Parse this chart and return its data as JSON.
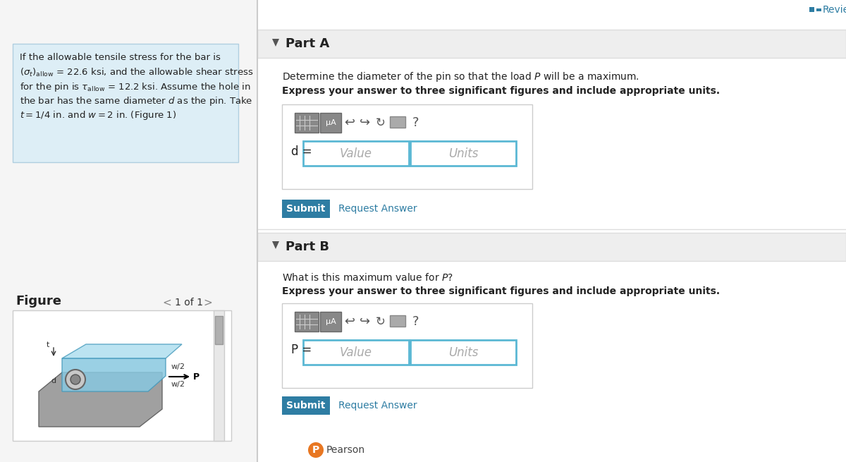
{
  "bg_color": "#f0f0f0",
  "white": "#ffffff",
  "light_blue_box": "#ddeef6",
  "submit_color": "#2e7da3",
  "input_border": "#5bb8d4",
  "dark_text": "#222222",
  "review_color": "#2e7da3",
  "part_a_title": "Part A",
  "part_b_title": "Part B",
  "problem_text_line1": "If the allowable tensile stress for the bar is",
  "part_a_q1": "Determine the diameter of the pin so that the load ",
  "part_a_q1c": " will be a maximum.",
  "part_a_q2": "Express your answer to three significant figures and include appropriate units.",
  "part_b_q1": "What is this maximum value for ",
  "part_b_q1c": "?",
  "part_b_q2": "Express your answer to three significant figures and include appropriate units.",
  "figure_label": "Figure",
  "figure_nav": "1 of 1",
  "value_placeholder": "Value",
  "units_placeholder": "Units",
  "submit_label": "Submit",
  "request_answer": "Request Answer",
  "d_label": "d =",
  "p_label": "P =",
  "review_text": "Review"
}
